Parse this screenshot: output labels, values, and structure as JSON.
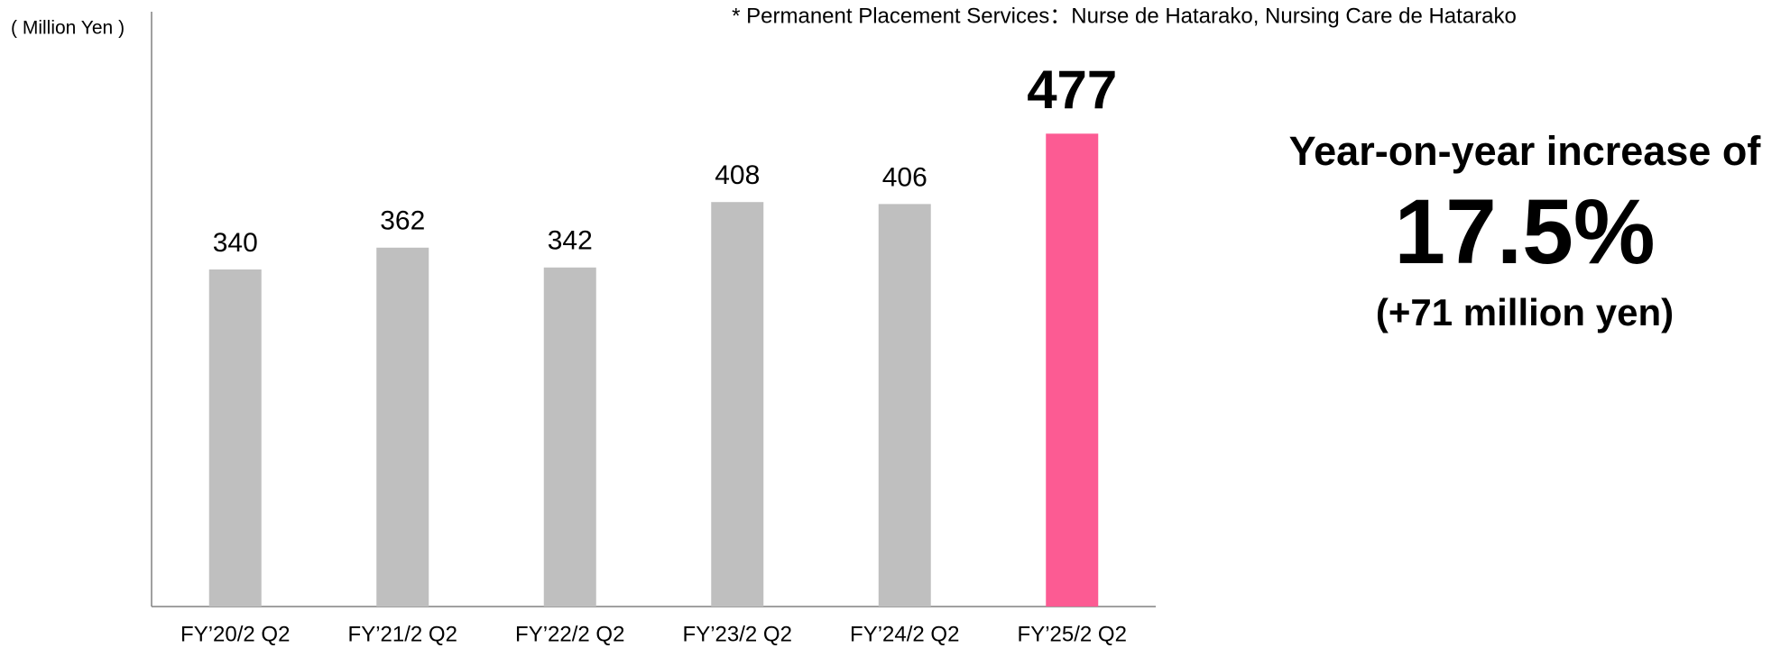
{
  "chart_data": {
    "type": "bar",
    "y_axis_label": "( Million Yen )",
    "note": "* Permanent Placement Services：Nurse de Hatarako, Nursing Care de Hatarako",
    "annotation": {
      "line1": "Year-on-year increase of",
      "line2": "17.5%",
      "line3": "(+71 million yen)",
      "color": "#fc5b93"
    },
    "categories": [
      "FY’20/2 Q2",
      "FY’21/2 Q2",
      "FY’22/2 Q2",
      "FY’23/2 Q2",
      "FY’24/2 Q2",
      "FY’25/2 Q2"
    ],
    "values": [
      340,
      362,
      342,
      408,
      406,
      477
    ],
    "colors": [
      "#bfbfbf",
      "#bfbfbf",
      "#bfbfbf",
      "#bfbfbf",
      "#bfbfbf",
      "#fc5b93"
    ],
    "ylim": [
      0,
      600
    ]
  }
}
